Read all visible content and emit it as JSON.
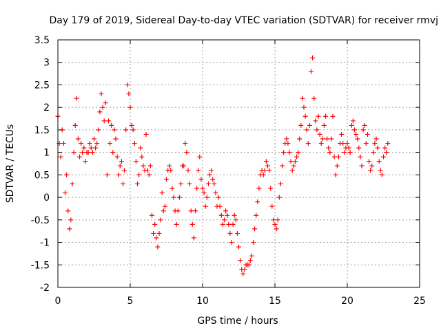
{
  "chart_data": {
    "type": "scatter",
    "title": "Day 179 of 2019, Sidereal Day-to-day VTEC variation (SDTVAR) for receiver rmvj",
    "xlabel": "GPS time / hours",
    "ylabel": "SDTVAR / TECUs",
    "xlim": [
      0,
      25
    ],
    "ylim": [
      -2,
      3.5
    ],
    "xticks": [
      0,
      5,
      10,
      15,
      20,
      25
    ],
    "xtick_labels": [
      "0",
      "5",
      "10",
      "15",
      "20",
      "25"
    ],
    "yticks": [
      -2,
      -1.5,
      -1,
      -0.5,
      0,
      0.5,
      1,
      1.5,
      2,
      2.5,
      3,
      3.5
    ],
    "ytick_labels": [
      "-2",
      "-1.5",
      "-1",
      "-0.5",
      "0",
      "0.5",
      "1",
      "1.5",
      "2",
      "2.5",
      "3",
      "3.5"
    ],
    "grid": true,
    "marker": "+",
    "marker_color": "#ff0000",
    "series": [
      {
        "name": "SDTVAR",
        "points": [
          [
            0.0,
            1.8
          ],
          [
            0.1,
            1.2
          ],
          [
            0.2,
            0.9
          ],
          [
            0.3,
            1.5
          ],
          [
            0.4,
            1.2
          ],
          [
            0.5,
            0.1
          ],
          [
            0.6,
            0.5
          ],
          [
            0.7,
            -0.3
          ],
          [
            0.8,
            -0.7
          ],
          [
            0.9,
            -0.5
          ],
          [
            1.0,
            0.3
          ],
          [
            1.1,
            1.0
          ],
          [
            1.2,
            1.6
          ],
          [
            1.3,
            2.2
          ],
          [
            1.4,
            1.3
          ],
          [
            1.5,
            0.9
          ],
          [
            1.6,
            1.2
          ],
          [
            1.7,
            1.0
          ],
          [
            1.8,
            1.1
          ],
          [
            1.9,
            0.8
          ],
          [
            2.0,
            1.0
          ],
          [
            2.1,
            1.0
          ],
          [
            2.2,
            1.2
          ],
          [
            2.3,
            1.1
          ],
          [
            2.4,
            1.0
          ],
          [
            2.5,
            1.3
          ],
          [
            2.6,
            1.1
          ],
          [
            2.7,
            1.2
          ],
          [
            2.8,
            1.5
          ],
          [
            2.9,
            1.9
          ],
          [
            3.0,
            2.3
          ],
          [
            3.1,
            2.0
          ],
          [
            3.2,
            1.7
          ],
          [
            3.3,
            2.1
          ],
          [
            3.4,
            0.5
          ],
          [
            3.5,
            1.7
          ],
          [
            3.6,
            1.2
          ],
          [
            3.7,
            1.6
          ],
          [
            3.8,
            1.0
          ],
          [
            3.9,
            1.5
          ],
          [
            4.0,
            1.3
          ],
          [
            4.1,
            0.9
          ],
          [
            4.2,
            0.5
          ],
          [
            4.3,
            0.7
          ],
          [
            4.4,
            0.8
          ],
          [
            4.5,
            0.3
          ],
          [
            4.6,
            0.6
          ],
          [
            4.7,
            1.5
          ],
          [
            4.8,
            2.5
          ],
          [
            4.9,
            2.3
          ],
          [
            5.0,
            2.0
          ],
          [
            5.1,
            1.6
          ],
          [
            5.2,
            1.5
          ],
          [
            5.3,
            1.2
          ],
          [
            5.4,
            0.8
          ],
          [
            5.5,
            0.3
          ],
          [
            5.6,
            0.5
          ],
          [
            5.7,
            1.1
          ],
          [
            5.8,
            0.9
          ],
          [
            5.9,
            0.7
          ],
          [
            6.0,
            0.6
          ],
          [
            6.1,
            1.4
          ],
          [
            6.2,
            0.6
          ],
          [
            6.3,
            0.5
          ],
          [
            6.4,
            0.7
          ],
          [
            6.5,
            -0.4
          ],
          [
            6.6,
            -0.8
          ],
          [
            6.7,
            -0.6
          ],
          [
            6.8,
            -0.9
          ],
          [
            6.9,
            -1.1
          ],
          [
            7.0,
            -0.8
          ],
          [
            7.1,
            -0.5
          ],
          [
            7.2,
            0.1
          ],
          [
            7.3,
            -0.3
          ],
          [
            7.4,
            -0.2
          ],
          [
            7.5,
            0.4
          ],
          [
            7.6,
            0.6
          ],
          [
            7.7,
            0.7
          ],
          [
            7.8,
            0.6
          ],
          [
            7.9,
            0.2
          ],
          [
            8.0,
            0.0
          ],
          [
            8.1,
            -0.3
          ],
          [
            8.2,
            -0.6
          ],
          [
            8.3,
            -0.3
          ],
          [
            8.4,
            0.0
          ],
          [
            8.5,
            0.3
          ],
          [
            8.6,
            0.7
          ],
          [
            8.7,
            0.7
          ],
          [
            8.8,
            1.2
          ],
          [
            8.9,
            1.0
          ],
          [
            9.0,
            0.6
          ],
          [
            9.1,
            0.3
          ],
          [
            9.2,
            -0.3
          ],
          [
            9.3,
            -0.6
          ],
          [
            9.4,
            -0.9
          ],
          [
            9.5,
            -0.3
          ],
          [
            9.6,
            0.2
          ],
          [
            9.7,
            0.6
          ],
          [
            9.8,
            0.9
          ],
          [
            9.9,
            0.4
          ],
          [
            10.0,
            0.2
          ],
          [
            10.1,
            0.1
          ],
          [
            10.2,
            -0.2
          ],
          [
            10.3,
            0.0
          ],
          [
            10.4,
            0.3
          ],
          [
            10.5,
            0.5
          ],
          [
            10.6,
            0.6
          ],
          [
            10.7,
            0.4
          ],
          [
            10.8,
            0.3
          ],
          [
            10.9,
            0.1
          ],
          [
            11.0,
            -0.2
          ],
          [
            11.1,
            0.0
          ],
          [
            11.2,
            -0.2
          ],
          [
            11.3,
            -0.4
          ],
          [
            11.4,
            -0.6
          ],
          [
            11.5,
            -0.5
          ],
          [
            11.6,
            -0.3
          ],
          [
            11.7,
            -0.4
          ],
          [
            11.8,
            -0.6
          ],
          [
            11.9,
            -0.8
          ],
          [
            12.0,
            -1.0
          ],
          [
            12.1,
            -0.6
          ],
          [
            12.2,
            -0.4
          ],
          [
            12.3,
            -0.5
          ],
          [
            12.4,
            -0.8
          ],
          [
            12.5,
            -1.1
          ],
          [
            12.6,
            -1.4
          ],
          [
            12.7,
            -1.6
          ],
          [
            12.8,
            -1.7
          ],
          [
            12.9,
            -1.6
          ],
          [
            13.0,
            -1.5
          ],
          [
            13.1,
            -1.5
          ],
          [
            13.2,
            -1.5
          ],
          [
            13.3,
            -1.4
          ],
          [
            13.4,
            -1.3
          ],
          [
            13.5,
            -1.0
          ],
          [
            13.6,
            -0.7
          ],
          [
            13.7,
            -0.4
          ],
          [
            13.8,
            -0.1
          ],
          [
            13.9,
            0.2
          ],
          [
            14.0,
            0.5
          ],
          [
            14.1,
            0.6
          ],
          [
            14.2,
            0.5
          ],
          [
            14.3,
            0.6
          ],
          [
            14.4,
            0.8
          ],
          [
            14.5,
            0.7
          ],
          [
            14.6,
            0.6
          ],
          [
            14.7,
            0.2
          ],
          [
            14.8,
            -0.2
          ],
          [
            14.9,
            -0.5
          ],
          [
            15.0,
            -0.6
          ],
          [
            15.1,
            -0.7
          ],
          [
            15.2,
            -0.5
          ],
          [
            15.3,
            0.0
          ],
          [
            15.4,
            0.3
          ],
          [
            15.5,
            0.7
          ],
          [
            15.6,
            1.0
          ],
          [
            15.7,
            1.2
          ],
          [
            15.8,
            1.3
          ],
          [
            15.9,
            1.2
          ],
          [
            16.0,
            1.0
          ],
          [
            16.1,
            0.8
          ],
          [
            16.2,
            0.6
          ],
          [
            16.3,
            0.7
          ],
          [
            16.4,
            0.8
          ],
          [
            16.5,
            0.9
          ],
          [
            16.6,
            1.0
          ],
          [
            16.7,
            1.3
          ],
          [
            16.8,
            1.6
          ],
          [
            16.9,
            2.2
          ],
          [
            17.0,
            2.0
          ],
          [
            17.1,
            1.8
          ],
          [
            17.2,
            1.5
          ],
          [
            17.3,
            1.2
          ],
          [
            17.4,
            1.6
          ],
          [
            17.5,
            2.8
          ],
          [
            17.6,
            3.1
          ],
          [
            17.7,
            2.2
          ],
          [
            17.8,
            1.7
          ],
          [
            17.9,
            1.5
          ],
          [
            18.0,
            1.8
          ],
          [
            18.1,
            1.4
          ],
          [
            18.2,
            1.2
          ],
          [
            18.3,
            1.3
          ],
          [
            18.4,
            1.6
          ],
          [
            18.5,
            1.8
          ],
          [
            18.6,
            1.3
          ],
          [
            18.7,
            1.1
          ],
          [
            18.8,
            1.0
          ],
          [
            18.9,
            1.3
          ],
          [
            19.0,
            1.8
          ],
          [
            19.1,
            0.9
          ],
          [
            19.2,
            0.5
          ],
          [
            19.3,
            0.7
          ],
          [
            19.4,
            0.9
          ],
          [
            19.5,
            1.2
          ],
          [
            19.6,
            1.4
          ],
          [
            19.7,
            1.2
          ],
          [
            19.8,
            1.0
          ],
          [
            19.9,
            1.1
          ],
          [
            20.0,
            1.2
          ],
          [
            20.1,
            1.1
          ],
          [
            20.2,
            1.0
          ],
          [
            20.3,
            1.6
          ],
          [
            20.4,
            1.7
          ],
          [
            20.5,
            1.5
          ],
          [
            20.6,
            1.4
          ],
          [
            20.7,
            1.3
          ],
          [
            20.8,
            1.1
          ],
          [
            20.9,
            0.9
          ],
          [
            21.0,
            0.7
          ],
          [
            21.1,
            1.5
          ],
          [
            21.2,
            1.6
          ],
          [
            21.3,
            1.2
          ],
          [
            21.4,
            1.4
          ],
          [
            21.5,
            0.8
          ],
          [
            21.6,
            0.6
          ],
          [
            21.7,
            0.7
          ],
          [
            21.8,
            1.0
          ],
          [
            21.9,
            1.2
          ],
          [
            22.0,
            1.3
          ],
          [
            22.1,
            1.1
          ],
          [
            22.2,
            0.8
          ],
          [
            22.3,
            0.6
          ],
          [
            22.4,
            0.5
          ],
          [
            22.5,
            0.9
          ],
          [
            22.6,
            1.1
          ],
          [
            22.7,
            1.0
          ],
          [
            22.8,
            1.2
          ]
        ]
      }
    ]
  }
}
